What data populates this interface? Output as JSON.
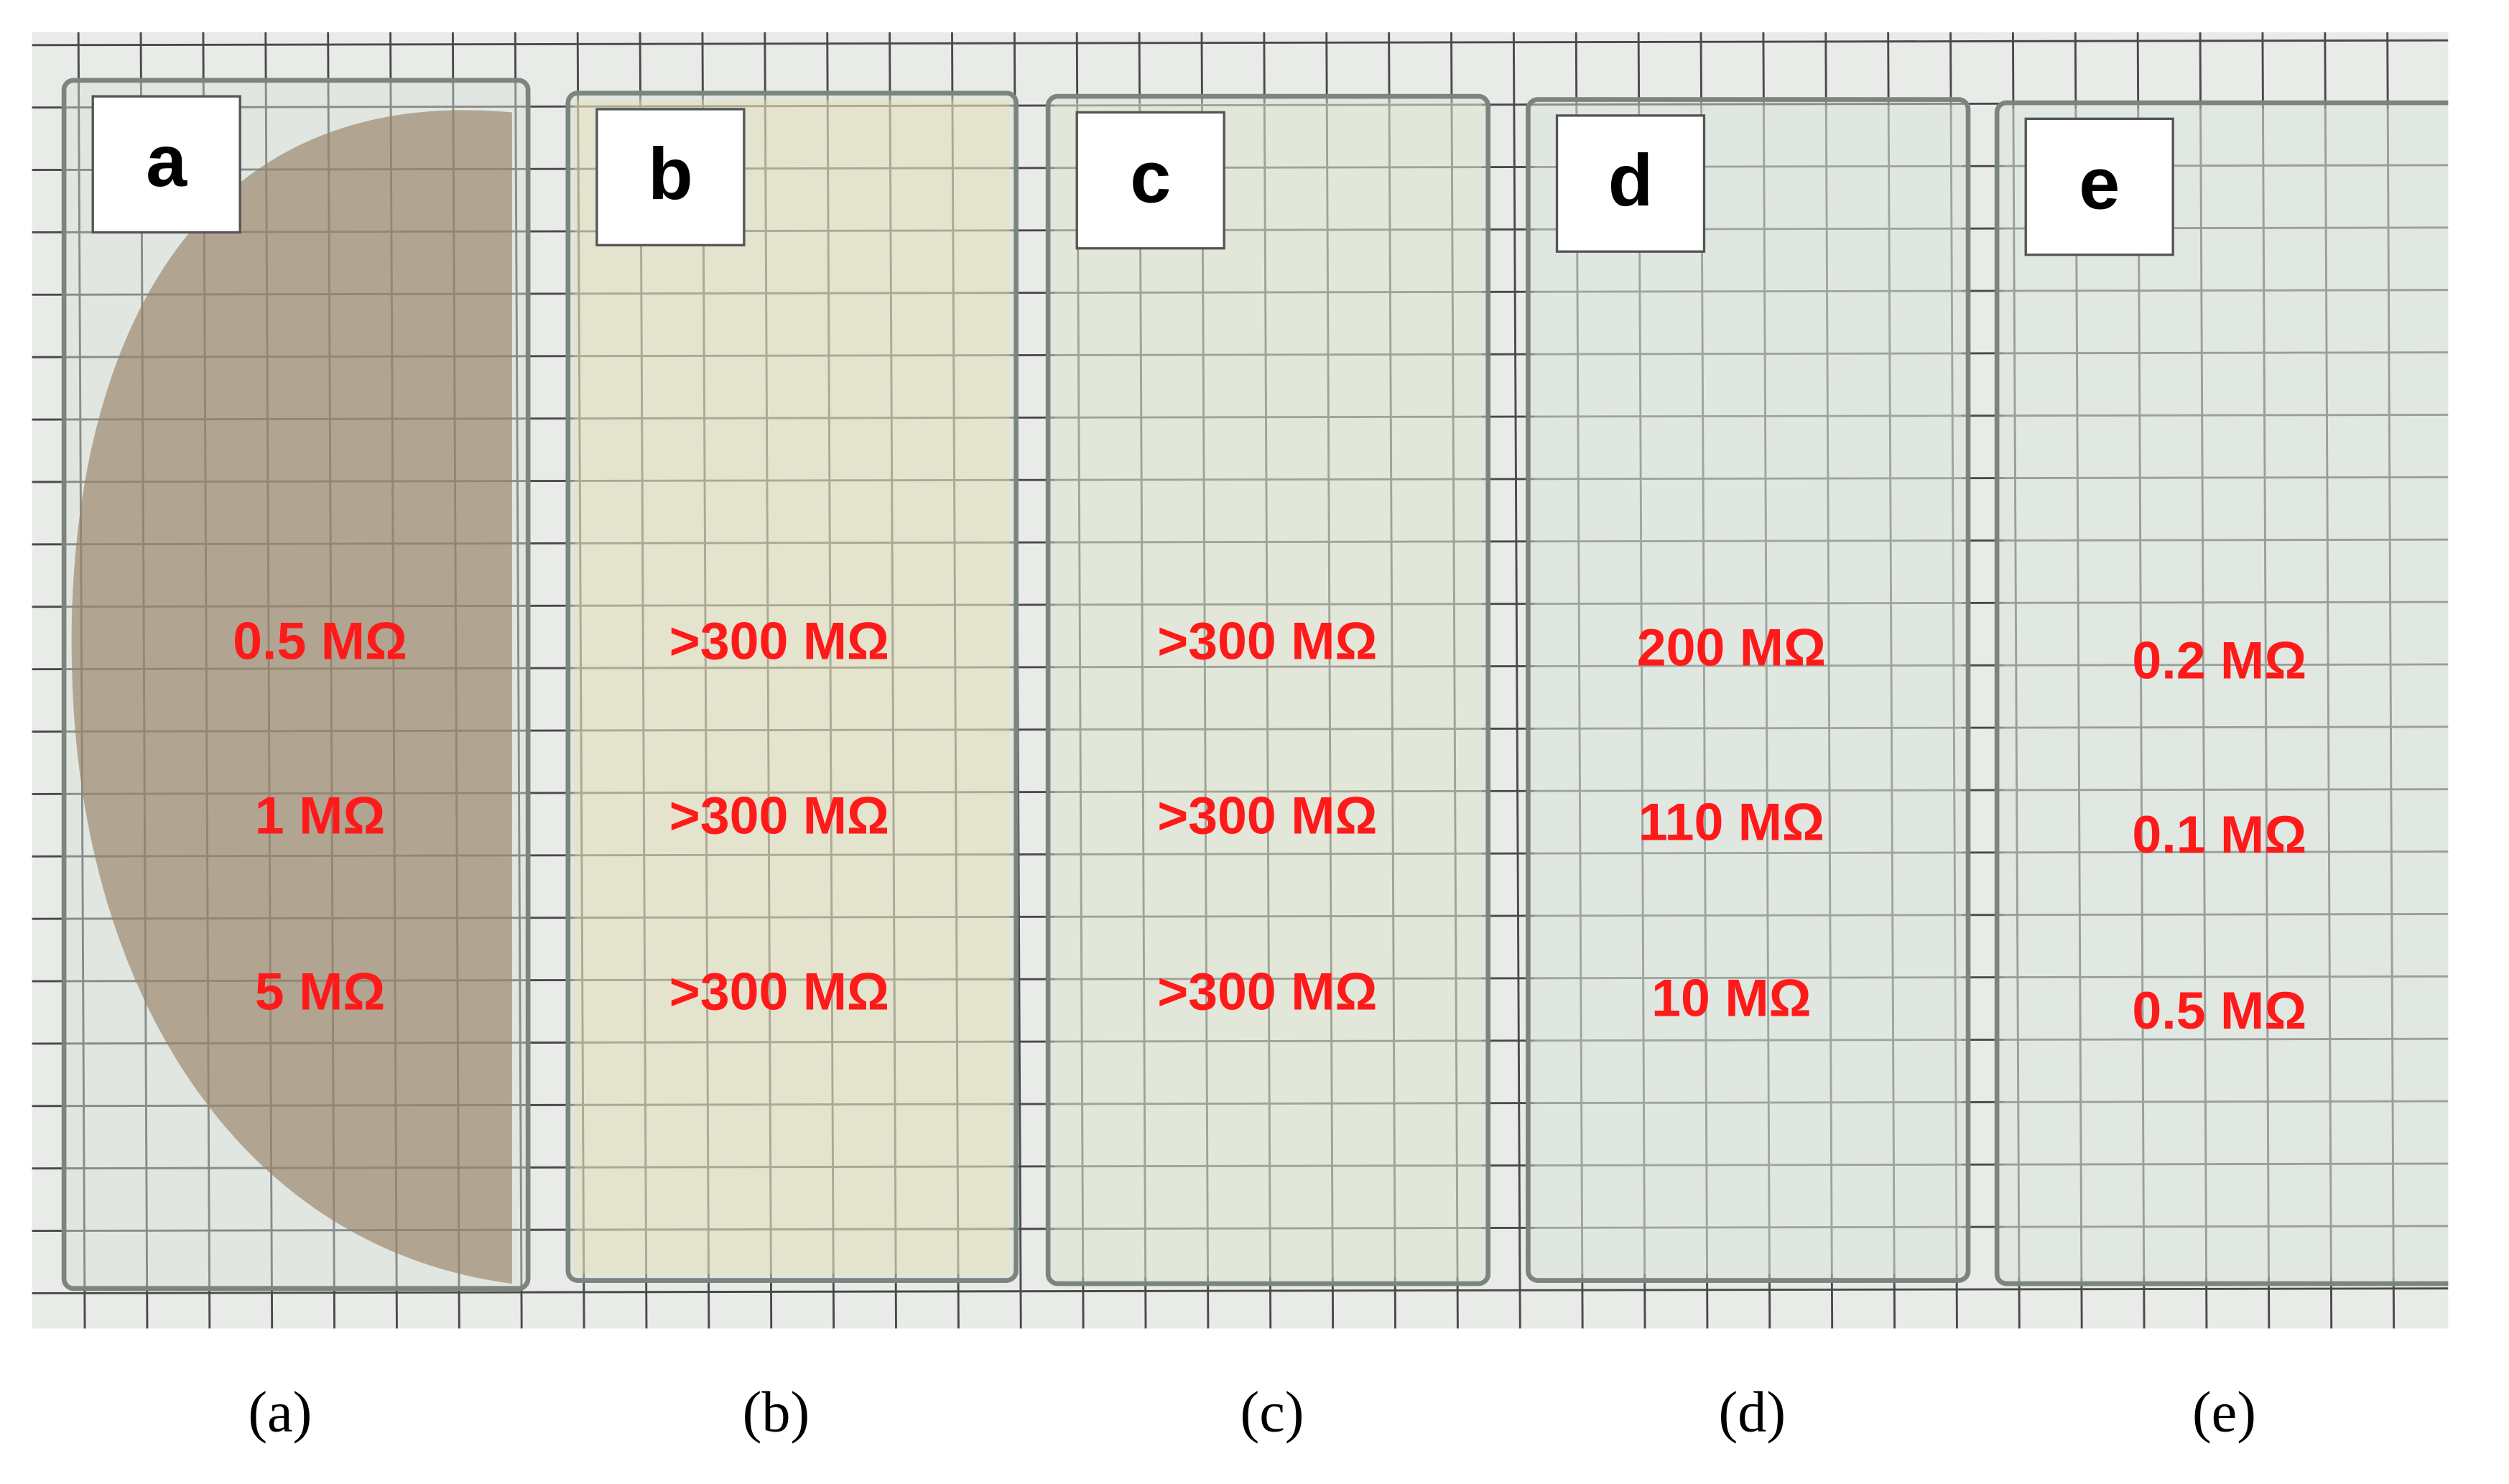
{
  "panels": [
    {
      "label": "a",
      "caption": "(a)",
      "readings": [
        "0.5 MΩ",
        "1 MΩ",
        "5 MΩ"
      ]
    },
    {
      "label": "b",
      "caption": "(b)",
      "readings": [
        ">300 MΩ",
        ">300 MΩ",
        ">300 MΩ"
      ]
    },
    {
      "label": "c",
      "caption": "(c)",
      "readings": [
        ">300 MΩ",
        ">300 MΩ",
        ">300 MΩ"
      ]
    },
    {
      "label": "d",
      "caption": "(d)",
      "readings": [
        "200 MΩ",
        "110 MΩ",
        "10 MΩ"
      ]
    },
    {
      "label": "e",
      "caption": "(e)",
      "readings": [
        "0.2 MΩ",
        "0.1 MΩ",
        "0.5 MΩ"
      ]
    }
  ]
}
